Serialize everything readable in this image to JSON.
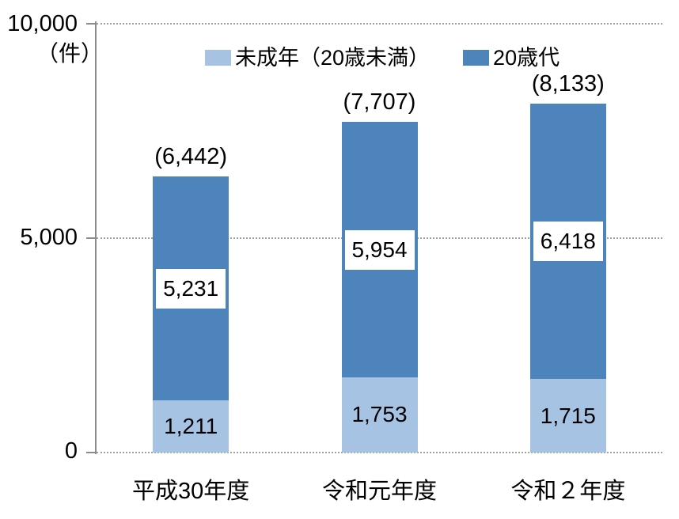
{
  "chart_data": {
    "type": "bar",
    "stacked": true,
    "categories": [
      "平成30年度",
      "令和元年度",
      "令和２年度"
    ],
    "series": [
      {
        "name": "未成年（20歳未満）",
        "color": "#a6c3e4",
        "values": [
          1211,
          1753,
          1715
        ],
        "value_labels": [
          "1,211",
          "1,753",
          "1,715"
        ],
        "label_style": "plain"
      },
      {
        "name": "20歳代",
        "color": "#4e84bc",
        "values": [
          5231,
          5954,
          6418
        ],
        "value_labels": [
          "5,231",
          "5,954",
          "6,418"
        ],
        "label_style": "boxed"
      }
    ],
    "totals": {
      "values": [
        6442,
        7707,
        8133
      ],
      "labels": [
        "(6,442)",
        "(7,707)",
        "(8,133)"
      ]
    },
    "y_axis": {
      "min": 0,
      "max": 10000,
      "unit_label": "（件）",
      "ticks": [
        {
          "value": 10000,
          "label": "10,000"
        },
        {
          "value": 5000,
          "label": "5,000"
        },
        {
          "value": 0,
          "label": "0"
        }
      ]
    },
    "legend": {
      "position": "top",
      "items": [
        "未成年（20歳未満）",
        "20歳代"
      ]
    },
    "grid": {
      "style": "dotted",
      "lines": "horizontal"
    },
    "colors": {
      "axis": "#8c8c8c",
      "gridline": "#a0a0a0",
      "text": "#000000",
      "label_box_bg": "#ffffff"
    }
  }
}
